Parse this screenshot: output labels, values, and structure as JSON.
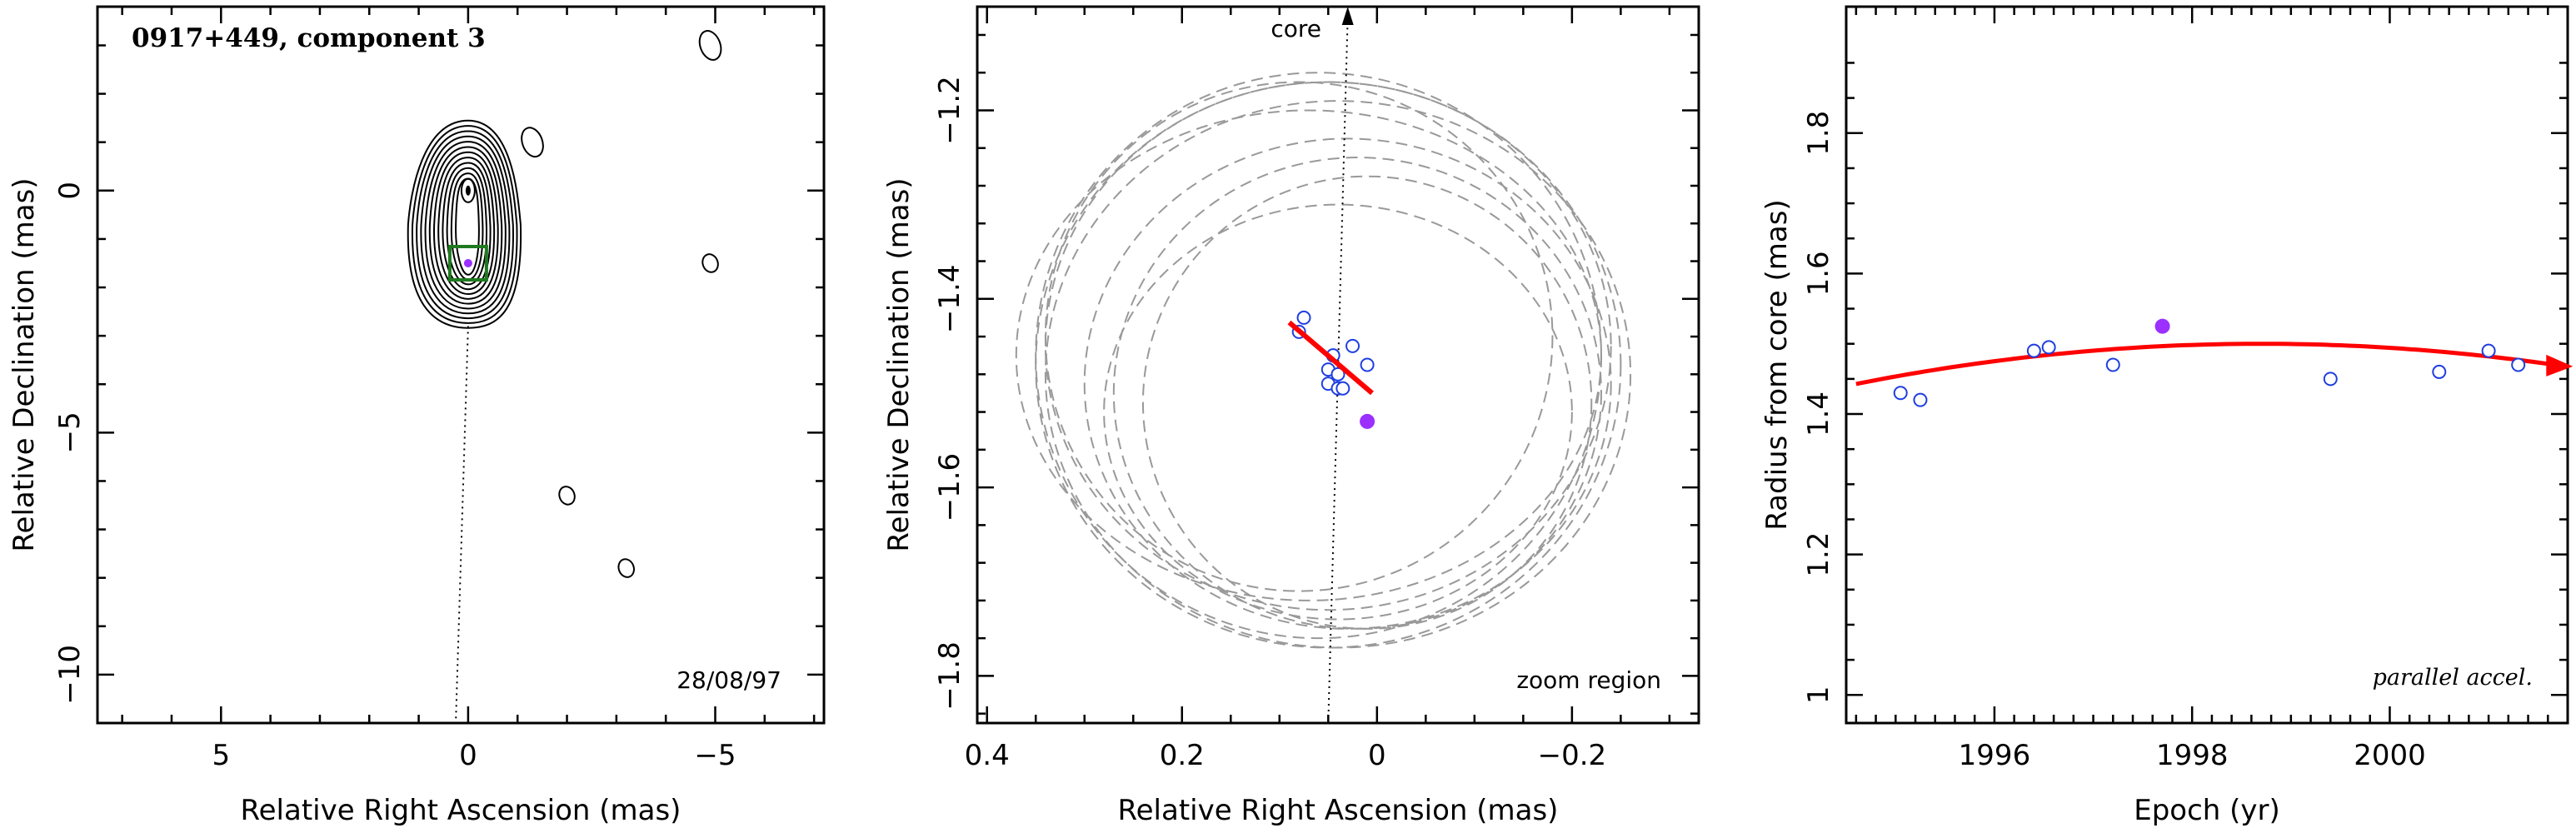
{
  "chart_data": [
    {
      "type": "contour",
      "title": "0917+449, component 3",
      "annotation": "28/08/97",
      "xlabel": "Relative Right Ascension (mas)",
      "ylabel": "Relative Declination (mas)",
      "xlim": [
        7.5,
        -7.2
      ],
      "ylim": [
        -11,
        3.8
      ],
      "xticks": [
        "5",
        "0",
        "−5"
      ],
      "yticks": [
        "0",
        "−5",
        "−10"
      ],
      "core": {
        "x": 0,
        "y": 0
      },
      "component": {
        "x": 0,
        "y": -1.5
      },
      "box_color": "#1f7a1f",
      "component_color": "#9b30ff",
      "contour_levels": 12,
      "isolated_blobs": [
        {
          "x": -4.9,
          "y": 3.0
        },
        {
          "x": -1.3,
          "y": 1.0
        },
        {
          "x": -4.9,
          "y": -1.5
        },
        {
          "x": -2.0,
          "y": -6.3
        },
        {
          "x": -3.2,
          "y": -7.8
        }
      ]
    },
    {
      "type": "scatter",
      "annotation": "zoom region",
      "core_label": "core",
      "xlabel": "Relative Right Ascension (mas)",
      "ylabel": "Relative Declination (mas)",
      "xlim": [
        0.41,
        -0.33
      ],
      "ylim": [
        -1.85,
        -1.09
      ],
      "xticks": [
        "0.4",
        "0.2",
        "0",
        "−0.2"
      ],
      "yticks": [
        "−1.2",
        "−1.4",
        "−1.6",
        "−1.8"
      ],
      "open_points": [
        {
          "x": 0.075,
          "y": -1.42
        },
        {
          "x": 0.08,
          "y": -1.435
        },
        {
          "x": 0.045,
          "y": -1.46
        },
        {
          "x": 0.025,
          "y": -1.45
        },
        {
          "x": 0.01,
          "y": -1.47
        },
        {
          "x": 0.05,
          "y": -1.475
        },
        {
          "x": 0.04,
          "y": -1.48
        },
        {
          "x": 0.05,
          "y": -1.49
        },
        {
          "x": 0.04,
          "y": -1.495
        },
        {
          "x": 0.035,
          "y": -1.495
        }
      ],
      "filled_point": {
        "x": 0.01,
        "y": -1.53
      },
      "open_point_color": "#1f3fe0",
      "filled_point_color": "#9b30ff",
      "motion_vector_color": "#ff0000",
      "motion_vector": {
        "x0": 0.09,
        "y0": -1.425,
        "x1": 0.005,
        "y1": -1.5
      },
      "uncertainty_ellipses": [
        {
          "cx": 0.05,
          "cy": -1.47,
          "rx": 0.3,
          "ry": 0.3
        },
        {
          "cx": 0.06,
          "cy": -1.46,
          "rx": 0.29,
          "ry": 0.3
        },
        {
          "cx": 0.04,
          "cy": -1.48,
          "rx": 0.3,
          "ry": 0.29
        },
        {
          "cx": 0.05,
          "cy": -1.45,
          "rx": 0.29,
          "ry": 0.28
        },
        {
          "cx": 0.03,
          "cy": -1.49,
          "rx": 0.27,
          "ry": 0.26
        },
        {
          "cx": 0.02,
          "cy": -1.5,
          "rx": 0.25,
          "ry": 0.25
        },
        {
          "cx": 0.07,
          "cy": -1.46,
          "rx": 0.3,
          "ry": 0.26
        },
        {
          "cx": 0.04,
          "cy": -1.52,
          "rx": 0.24,
          "ry": 0.22
        },
        {
          "cx": 0.08,
          "cy": -1.44,
          "rx": 0.26,
          "ry": 0.27
        },
        {
          "cx": 0.01,
          "cy": -1.51,
          "rx": 0.23,
          "ry": 0.24
        }
      ]
    },
    {
      "type": "scatter",
      "annotation": "parallel accel.",
      "xlabel": "Epoch (yr)",
      "ylabel": "Radius from core (mas)",
      "xlim": [
        1994.5,
        2001.8
      ],
      "ylim": [
        0.96,
        1.98
      ],
      "xticks": [
        "1996",
        "1998",
        "2000"
      ],
      "yticks": [
        "1",
        "1.2",
        "1.4",
        "1.6",
        "1.8"
      ],
      "open_points": [
        {
          "x": 1995.05,
          "y": 1.43
        },
        {
          "x": 1995.25,
          "y": 1.42
        },
        {
          "x": 1996.4,
          "y": 1.49
        },
        {
          "x": 1996.55,
          "y": 1.495
        },
        {
          "x": 1997.2,
          "y": 1.47
        },
        {
          "x": 1999.4,
          "y": 1.45
        },
        {
          "x": 2000.5,
          "y": 1.46
        },
        {
          "x": 2001.0,
          "y": 1.49
        },
        {
          "x": 2001.3,
          "y": 1.47
        }
      ],
      "filled_point": {
        "x": 1997.7,
        "y": 1.525
      },
      "open_point_color": "#1f3fe0",
      "filled_point_color": "#9b30ff",
      "fit_color": "#ff0000",
      "fit_curve": {
        "x_start": 1994.6,
        "x_end": 2001.6,
        "peak_x": 1998.7,
        "peak_y": 1.5,
        "curvature": -0.0034
      }
    }
  ]
}
